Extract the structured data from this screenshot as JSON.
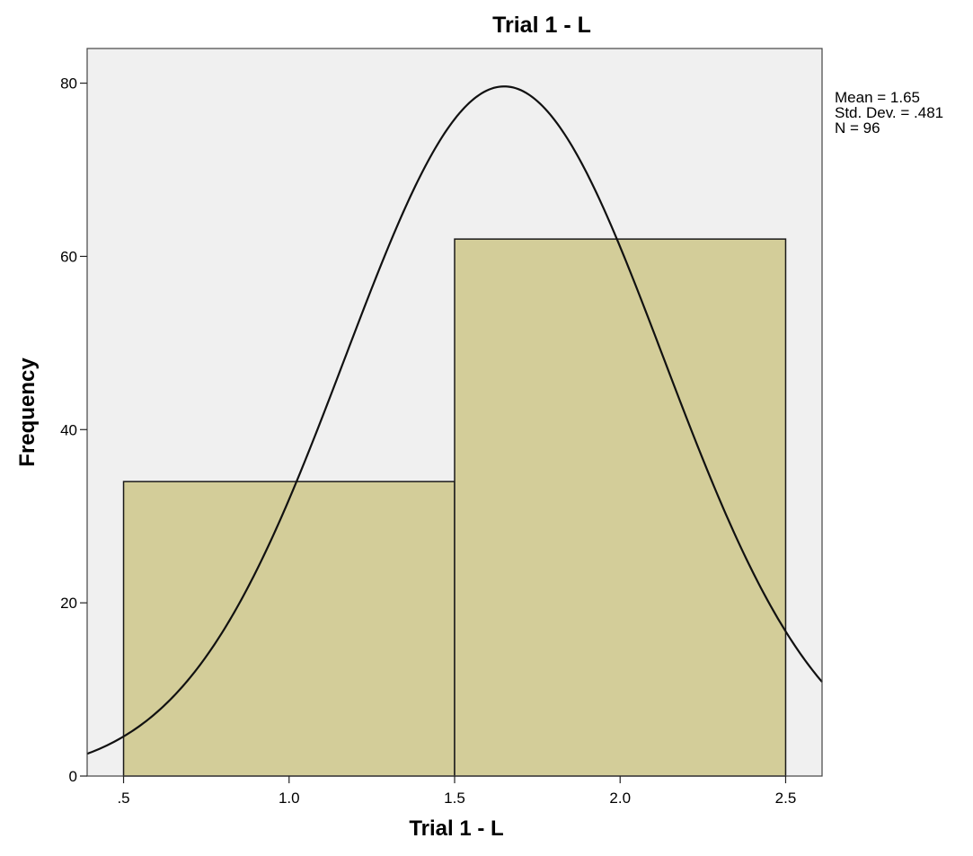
{
  "chart_data": {
    "type": "bar",
    "title": "Trial 1 - L",
    "xlabel": "Trial 1 - L",
    "ylabel": "Frequency",
    "bins": [
      {
        "from": 0.5,
        "to": 1.5,
        "count": 34
      },
      {
        "from": 1.5,
        "to": 2.5,
        "count": 62
      }
    ],
    "xlim": [
      0.39,
      2.61
    ],
    "ylim": [
      0,
      84
    ],
    "x_ticks": [
      0.5,
      1.0,
      1.5,
      2.0,
      2.5
    ],
    "x_tick_labels": [
      ".5",
      "1.0",
      "1.5",
      "2.0",
      "2.5"
    ],
    "y_ticks": [
      0,
      20,
      40,
      60,
      80
    ],
    "y_tick_labels": [
      "0",
      "20",
      "40",
      "60",
      "80"
    ],
    "normal_curve": {
      "mean": 1.65,
      "std_dev": 0.481,
      "n": 96,
      "bin_width": 1.0
    },
    "stats_text": [
      "Mean = 1.65",
      "Std. Dev. = .481",
      "N = 96"
    ],
    "grid": false,
    "legend": "none",
    "colors": {
      "plot_background": "#f0f0f0",
      "bar_fill": "#d3cd99",
      "bar_stroke": "#1a1a1a",
      "curve": "#111111",
      "frame": "#444444"
    }
  }
}
